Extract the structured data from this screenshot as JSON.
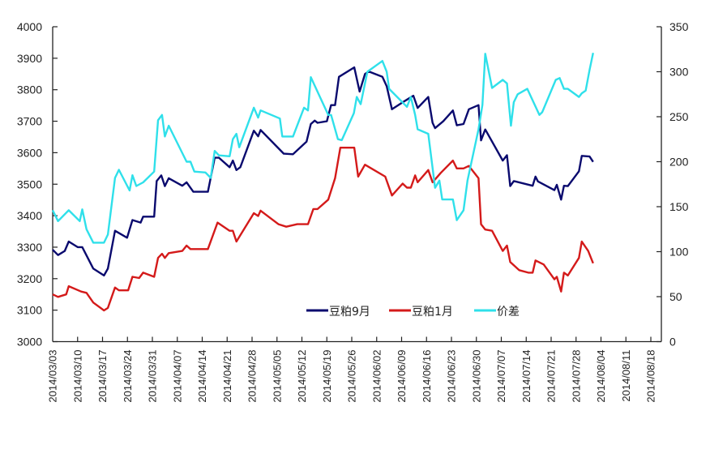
{
  "chart_data": {
    "type": "line",
    "title": "",
    "x_unit": "days since 2014/03/03",
    "x_start_date": "2014/03/03",
    "xlim_days": [
      0,
      171
    ],
    "x_tick_labels": [
      "2014/03/03",
      "2014/03/10",
      "2014/03/17",
      "2014/03/24",
      "2014/03/31",
      "2014/04/07",
      "2014/04/14",
      "2014/04/21",
      "2014/04/28",
      "2014/05/05",
      "2014/05/12",
      "2014/05/19",
      "2014/05/26",
      "2014/06/02",
      "2014/06/09",
      "2014/06/16",
      "2014/06/23",
      "2014/06/30",
      "2014/07/07",
      "2014/07/14",
      "2014/07/21",
      "2014/07/28",
      "2014/08/04",
      "2014/08/11",
      "2014/08/18"
    ],
    "y_left": {
      "ylim": [
        3000,
        4000
      ],
      "ticks": [
        "3000",
        "3100",
        "3200",
        "3300",
        "3400",
        "3500",
        "3600",
        "3700",
        "3800",
        "3900",
        "4000"
      ]
    },
    "y_right": {
      "ylim": [
        0,
        350
      ],
      "ticks": [
        "0",
        "50",
        "100",
        "150",
        "200",
        "250",
        "300",
        "350"
      ]
    },
    "legend_position": "bottom-center",
    "grid": false,
    "series": [
      {
        "name": "豆粕9月",
        "axis": "left",
        "color": "#0a0a6e",
        "points": [
          [
            0,
            3292
          ],
          [
            1.5,
            3275
          ],
          [
            3.4,
            3288
          ],
          [
            4.5,
            3318
          ],
          [
            7,
            3300
          ],
          [
            8.3,
            3300
          ],
          [
            11.4,
            3232
          ],
          [
            14.4,
            3210
          ],
          [
            15.5,
            3232
          ],
          [
            17.5,
            3352
          ],
          [
            20.9,
            3330
          ],
          [
            22.4,
            3386
          ],
          [
            24.7,
            3378
          ],
          [
            25.4,
            3397
          ],
          [
            28.5,
            3397
          ],
          [
            29.2,
            3510
          ],
          [
            30.5,
            3528
          ],
          [
            31.5,
            3494
          ],
          [
            32.6,
            3519
          ],
          [
            36.4,
            3495
          ],
          [
            37.6,
            3506
          ],
          [
            39.5,
            3476
          ],
          [
            43.6,
            3476
          ],
          [
            45.5,
            3584
          ],
          [
            46.7,
            3584
          ],
          [
            49.7,
            3554
          ],
          [
            50.6,
            3575
          ],
          [
            51.6,
            3545
          ],
          [
            52.7,
            3554
          ],
          [
            56.5,
            3670
          ],
          [
            57.7,
            3652
          ],
          [
            58.4,
            3672
          ],
          [
            64.9,
            3597
          ],
          [
            67.5,
            3595
          ],
          [
            71.3,
            3635
          ],
          [
            72.5,
            3691
          ],
          [
            73.6,
            3702
          ],
          [
            74.4,
            3695
          ],
          [
            77,
            3700
          ],
          [
            78.2,
            3751
          ],
          [
            79.3,
            3751
          ],
          [
            80.4,
            3841
          ],
          [
            84.7,
            3871
          ],
          [
            86.2,
            3794
          ],
          [
            87.7,
            3850
          ],
          [
            88.8,
            3858
          ],
          [
            92.6,
            3841
          ],
          [
            93.8,
            3811
          ],
          [
            95.3,
            3738
          ],
          [
            98.3,
            3760
          ],
          [
            101.3,
            3781
          ],
          [
            102.5,
            3742
          ],
          [
            105.5,
            3777
          ],
          [
            106.7,
            3695
          ],
          [
            107.4,
            3678
          ],
          [
            109.7,
            3700
          ],
          [
            112.4,
            3734
          ],
          [
            113.5,
            3687
          ],
          [
            115.4,
            3691
          ],
          [
            116.9,
            3738
          ],
          [
            119.6,
            3751
          ],
          [
            120.3,
            3639
          ],
          [
            121.5,
            3674
          ],
          [
            126.4,
            3575
          ],
          [
            127.6,
            3592
          ],
          [
            128.5,
            3494
          ],
          [
            129.5,
            3510
          ],
          [
            134.8,
            3495
          ],
          [
            135.6,
            3524
          ],
          [
            136.3,
            3509
          ],
          [
            140.9,
            3481
          ],
          [
            141.6,
            3498
          ],
          [
            142.8,
            3451
          ],
          [
            143.6,
            3495
          ],
          [
            144.7,
            3494
          ],
          [
            147.8,
            3541
          ],
          [
            148.6,
            3590
          ],
          [
            150.8,
            3588
          ],
          [
            151.8,
            3571
          ]
        ]
      },
      {
        "name": "豆粕1月",
        "axis": "left",
        "color": "#d41a1a",
        "points": [
          [
            0,
            3150
          ],
          [
            1.5,
            3142
          ],
          [
            3.8,
            3150
          ],
          [
            4.5,
            3176
          ],
          [
            8,
            3159
          ],
          [
            9.5,
            3155
          ],
          [
            11.4,
            3124
          ],
          [
            14.4,
            3099
          ],
          [
            15.5,
            3107
          ],
          [
            17.5,
            3172
          ],
          [
            18.6,
            3163
          ],
          [
            21.2,
            3163
          ],
          [
            22.4,
            3206
          ],
          [
            24.3,
            3202
          ],
          [
            25.4,
            3219
          ],
          [
            28.5,
            3206
          ],
          [
            29.6,
            3266
          ],
          [
            30.7,
            3279
          ],
          [
            31.5,
            3266
          ],
          [
            32.6,
            3281
          ],
          [
            36.4,
            3288
          ],
          [
            37.6,
            3305
          ],
          [
            38.7,
            3294
          ],
          [
            43.6,
            3294
          ],
          [
            46.3,
            3378
          ],
          [
            49.7,
            3352
          ],
          [
            50.6,
            3352
          ],
          [
            51.6,
            3318
          ],
          [
            56.5,
            3408
          ],
          [
            57.7,
            3399
          ],
          [
            58.4,
            3416
          ],
          [
            63.4,
            3373
          ],
          [
            65.6,
            3365
          ],
          [
            68.7,
            3373
          ],
          [
            71.7,
            3373
          ],
          [
            73.2,
            3421
          ],
          [
            74.4,
            3421
          ],
          [
            77.4,
            3451
          ],
          [
            79.3,
            3519
          ],
          [
            80.8,
            3616
          ],
          [
            84.7,
            3616
          ],
          [
            85.8,
            3524
          ],
          [
            87.7,
            3562
          ],
          [
            93.4,
            3524
          ],
          [
            95.3,
            3464
          ],
          [
            98.3,
            3502
          ],
          [
            99.5,
            3489
          ],
          [
            100.6,
            3489
          ],
          [
            101.8,
            3528
          ],
          [
            102.5,
            3506
          ],
          [
            105.5,
            3545
          ],
          [
            106.7,
            3506
          ],
          [
            109,
            3536
          ],
          [
            112.4,
            3575
          ],
          [
            113.5,
            3550
          ],
          [
            115.4,
            3550
          ],
          [
            116.9,
            3558
          ],
          [
            119.6,
            3519
          ],
          [
            120.3,
            3373
          ],
          [
            121.5,
            3356
          ],
          [
            123.4,
            3352
          ],
          [
            126.4,
            3288
          ],
          [
            127.6,
            3305
          ],
          [
            128.5,
            3253
          ],
          [
            131,
            3227
          ],
          [
            133.6,
            3219
          ],
          [
            134.8,
            3219
          ],
          [
            135.6,
            3258
          ],
          [
            137.9,
            3245
          ],
          [
            140.9,
            3198
          ],
          [
            141.6,
            3206
          ],
          [
            142.8,
            3159
          ],
          [
            143.6,
            3219
          ],
          [
            144.7,
            3210
          ],
          [
            147.8,
            3266
          ],
          [
            148.6,
            3318
          ],
          [
            150.4,
            3288
          ],
          [
            151.8,
            3249
          ]
        ]
      },
      {
        "name": "价差",
        "axis": "right",
        "color": "#2fe0ea",
        "points": [
          [
            0,
            146
          ],
          [
            1.5,
            134
          ],
          [
            4.5,
            146
          ],
          [
            7.6,
            134
          ],
          [
            8.3,
            147
          ],
          [
            9.5,
            125
          ],
          [
            11.4,
            110
          ],
          [
            14.4,
            110
          ],
          [
            15.5,
            119
          ],
          [
            17.5,
            182
          ],
          [
            18.6,
            191
          ],
          [
            21.6,
            168
          ],
          [
            22.4,
            185
          ],
          [
            23.5,
            173
          ],
          [
            25.4,
            177
          ],
          [
            28.5,
            189
          ],
          [
            29.6,
            246
          ],
          [
            30.7,
            252
          ],
          [
            31.5,
            228
          ],
          [
            32.6,
            240
          ],
          [
            37.6,
            200
          ],
          [
            38.7,
            200
          ],
          [
            39.8,
            189
          ],
          [
            42.9,
            188
          ],
          [
            44.4,
            182
          ],
          [
            45.5,
            212
          ],
          [
            46.7,
            207
          ],
          [
            49.7,
            206
          ],
          [
            50.6,
            225
          ],
          [
            51.6,
            231
          ],
          [
            52.4,
            216
          ],
          [
            56.5,
            260
          ],
          [
            57.7,
            249
          ],
          [
            58.4,
            257
          ],
          [
            63.8,
            248
          ],
          [
            64.5,
            228
          ],
          [
            67.5,
            228
          ],
          [
            70.6,
            260
          ],
          [
            71.7,
            257
          ],
          [
            72.5,
            294
          ],
          [
            77.4,
            252
          ],
          [
            78.2,
            252
          ],
          [
            80.1,
            225
          ],
          [
            81.2,
            224
          ],
          [
            84.6,
            254
          ],
          [
            85.4,
            272
          ],
          [
            86.5,
            264
          ],
          [
            88.4,
            300
          ],
          [
            92.6,
            312
          ],
          [
            93.8,
            300
          ],
          [
            94.5,
            281
          ],
          [
            99.5,
            261
          ],
          [
            100.6,
            272
          ],
          [
            101.8,
            252
          ],
          [
            102.5,
            236
          ],
          [
            105.5,
            231
          ],
          [
            107.4,
            171
          ],
          [
            108.6,
            179
          ],
          [
            109.4,
            158
          ],
          [
            112.4,
            158
          ],
          [
            113.5,
            135
          ],
          [
            115.4,
            146
          ],
          [
            116.5,
            179
          ],
          [
            119.6,
            236
          ],
          [
            120.7,
            263
          ],
          [
            121.5,
            320
          ],
          [
            123.4,
            282
          ],
          [
            126.4,
            291
          ],
          [
            127.6,
            287
          ],
          [
            128.7,
            240
          ],
          [
            129.5,
            266
          ],
          [
            130.6,
            275
          ],
          [
            133.3,
            281
          ],
          [
            136.7,
            252
          ],
          [
            137.5,
            255
          ],
          [
            141.3,
            291
          ],
          [
            142.4,
            293
          ],
          [
            143.6,
            281
          ],
          [
            144.7,
            281
          ],
          [
            147.8,
            272
          ],
          [
            148.6,
            276
          ],
          [
            149.7,
            279
          ],
          [
            150.8,
            302
          ],
          [
            151.8,
            321
          ]
        ]
      }
    ]
  }
}
